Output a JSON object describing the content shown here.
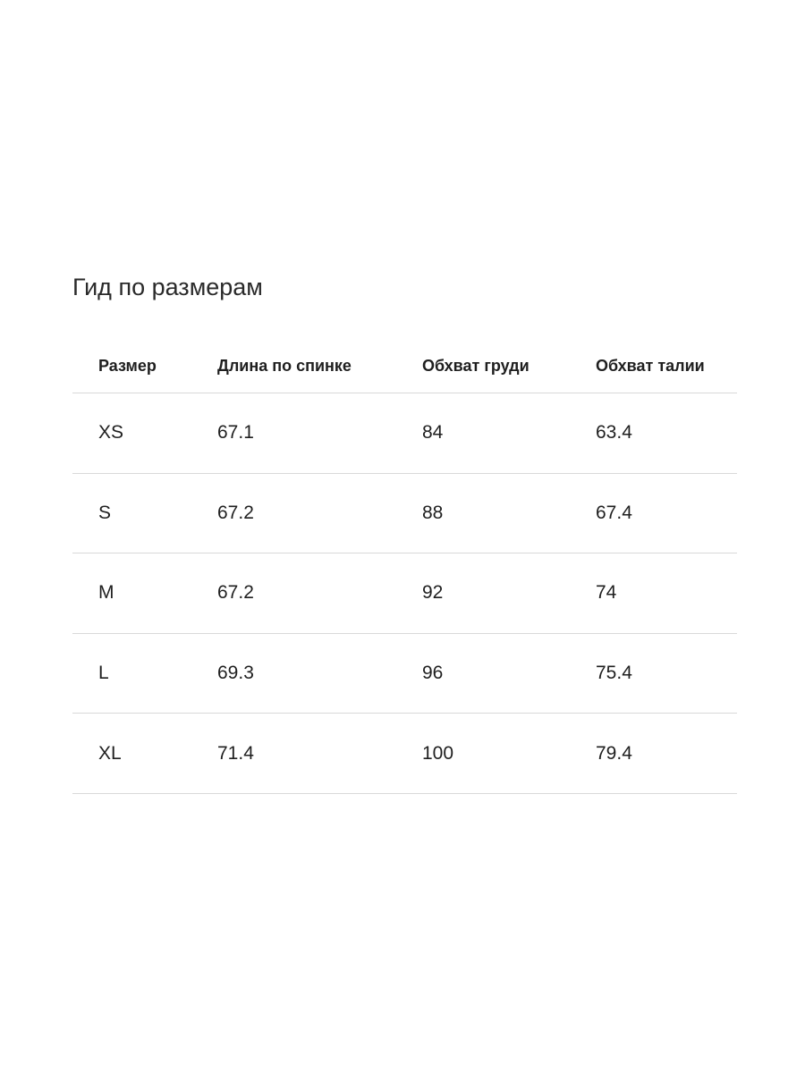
{
  "title": "Гид по размерам",
  "table": {
    "headers": [
      "Размер",
      "Длина по спинке",
      "Обхват груди",
      "Обхват талии"
    ],
    "rows": [
      [
        "XS",
        "67.1",
        "84",
        "63.4"
      ],
      [
        "S",
        "67.2",
        "88",
        "67.4"
      ],
      [
        "M",
        "67.2",
        "92",
        "74"
      ],
      [
        "L",
        "69.3",
        "96",
        "75.4"
      ],
      [
        "XL",
        "71.4",
        "100",
        "79.4"
      ]
    ]
  }
}
